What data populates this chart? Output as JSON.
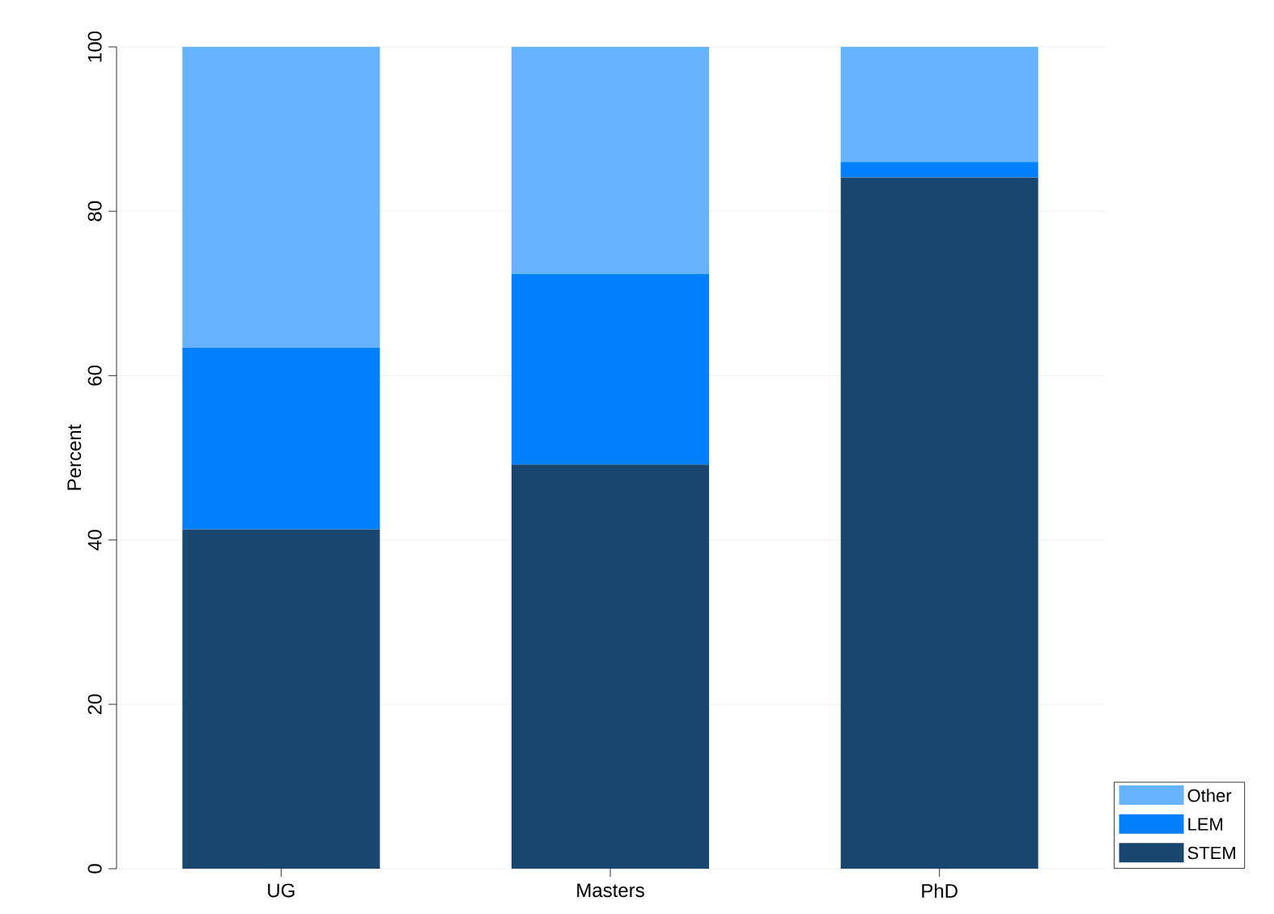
{
  "chart_data": {
    "type": "bar",
    "stacked": true,
    "ylabel": "Percent",
    "categories": [
      "UG",
      "Masters",
      "PhD"
    ],
    "series": [
      {
        "name": "STEM",
        "color": "#1a476f",
        "values": [
          41.3,
          49.2,
          84.1
        ]
      },
      {
        "name": "LEM",
        "color": "#0080ff",
        "values": [
          22.1,
          23.2,
          1.9
        ]
      },
      {
        "name": "Other",
        "color": "#66b2ff",
        "values": [
          36.6,
          27.6,
          14.0
        ]
      }
    ],
    "ylim": [
      0,
      100
    ],
    "yticks": [
      0,
      20,
      40,
      60,
      80,
      100
    ],
    "grid": "y",
    "legend": "bottom right"
  }
}
